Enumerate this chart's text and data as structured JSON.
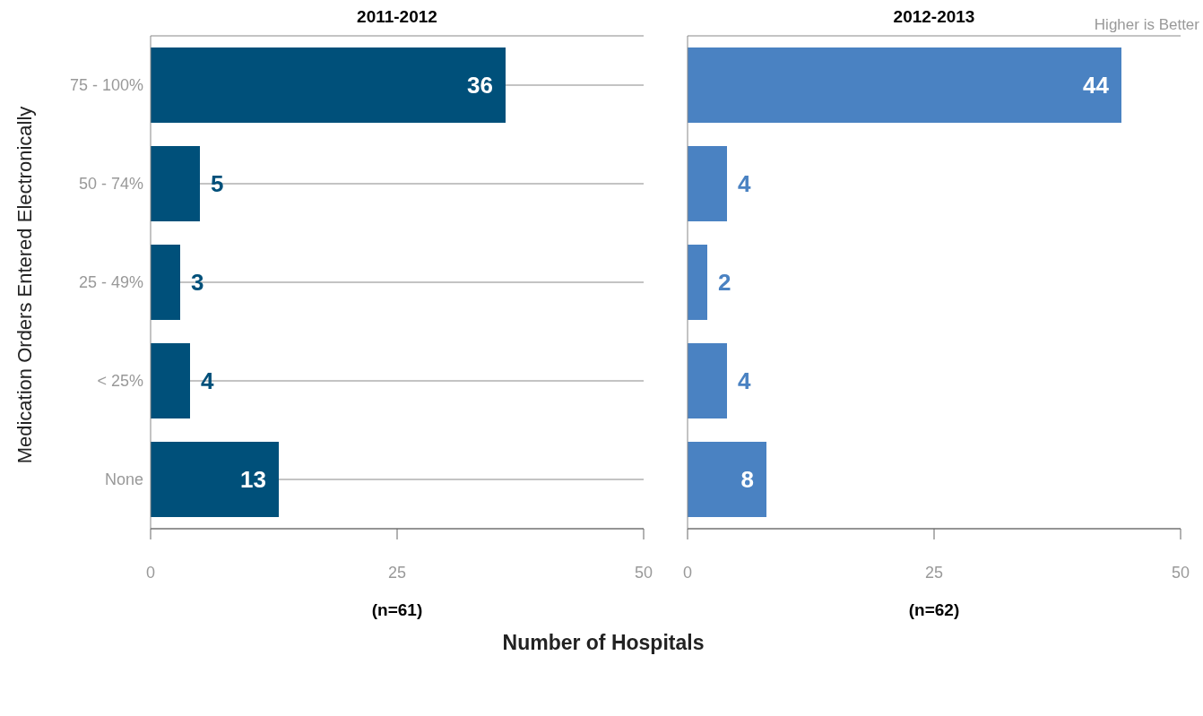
{
  "chart_data": [
    {
      "type": "bar",
      "orientation": "horizontal",
      "title": "2011-2012",
      "ylabel": "Medication Orders Entered Electronically",
      "xlabel": "(n=61)",
      "categories": [
        "75 - 100%",
        "50 - 74%",
        "25 - 49%",
        "< 25%",
        "None"
      ],
      "values": [
        36,
        5,
        3,
        4,
        13
      ],
      "color": "#00507a",
      "xlim": [
        0,
        50
      ],
      "xticks": [
        0,
        25,
        50
      ],
      "grid": "y",
      "data_labels": true,
      "annotations": [
        "Number of Hospitals"
      ]
    },
    {
      "type": "bar",
      "orientation": "horizontal",
      "title": "2012-2013",
      "xlabel": "(n=62)",
      "categories": [
        null,
        null,
        null,
        null,
        null
      ],
      "values": [
        44,
        4,
        2,
        4,
        8
      ],
      "color": "#4a82c2",
      "xlim": [
        0,
        50
      ],
      "xticks": [
        0,
        25,
        50
      ],
      "grid": "y",
      "data_labels": true,
      "tick_labels": "x",
      "annotations": [
        "Higher is Better"
      ]
    }
  ]
}
